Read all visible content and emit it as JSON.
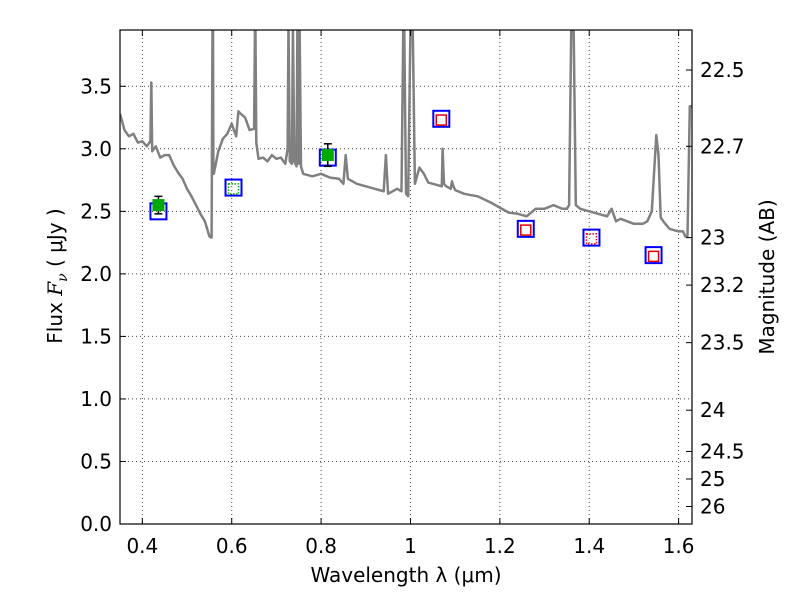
{
  "chart_data": {
    "type": "line",
    "xlabel": "Wavelength  λ (μm)",
    "ylabel_left": "Flux  F_ν  ( μJy )",
    "ylabel_left_parts": {
      "prefix": "Flux  ",
      "symbol": "F",
      "subscript": "ν",
      "suffix": "  ( μJy )"
    },
    "ylabel_right": "Magnitude (AB)",
    "xlim": [
      0.35,
      1.63
    ],
    "ylim": [
      0.0,
      3.95
    ],
    "grid": true,
    "x_ticks": [
      0.4,
      0.6,
      0.8,
      1.0,
      1.2,
      1.4,
      1.6
    ],
    "x_tick_labels": [
      "0.4",
      "0.6",
      "0.8",
      "1",
      "1.2",
      "1.4",
      "1.6"
    ],
    "y_ticks": [
      0.0,
      0.5,
      1.0,
      1.5,
      2.0,
      2.5,
      3.0,
      3.5
    ],
    "y_tick_labels": [
      "0.0",
      "0.5",
      "1.0",
      "1.5",
      "2.0",
      "2.5",
      "3.0",
      "3.5"
    ],
    "mag_ticks": [
      {
        "label": "22.5",
        "flux": 3.63
      },
      {
        "label": "22.7",
        "flux": 3.02
      },
      {
        "label": "23",
        "flux": 2.29
      },
      {
        "label": "23.2",
        "flux": 1.91
      },
      {
        "label": "23.5",
        "flux": 1.45
      },
      {
        "label": "24",
        "flux": 0.91
      },
      {
        "label": "24.5",
        "flux": 0.58
      },
      {
        "label": "25",
        "flux": 0.36
      },
      {
        "label": "26",
        "flux": 0.14
      }
    ],
    "series": [
      {
        "kind": "model_spectrum",
        "color": "#808080",
        "x": [
          0.35,
          0.36,
          0.37,
          0.38,
          0.39,
          0.4,
          0.41,
          0.418,
          0.42,
          0.422,
          0.43,
          0.44,
          0.45,
          0.46,
          0.47,
          0.48,
          0.49,
          0.5,
          0.51,
          0.52,
          0.53,
          0.54,
          0.55,
          0.555,
          0.557,
          0.558,
          0.559,
          0.56,
          0.57,
          0.58,
          0.59,
          0.6,
          0.61,
          0.615,
          0.62,
          0.63,
          0.64,
          0.65,
          0.652,
          0.653,
          0.655,
          0.66,
          0.67,
          0.68,
          0.69,
          0.7,
          0.71,
          0.72,
          0.725,
          0.727,
          0.73,
          0.735,
          0.737,
          0.74,
          0.745,
          0.747,
          0.75,
          0.752,
          0.755,
          0.76,
          0.78,
          0.8,
          0.82,
          0.84,
          0.85,
          0.855,
          0.86,
          0.87,
          0.88,
          0.9,
          0.92,
          0.94,
          0.945,
          0.95,
          0.97,
          0.98,
          0.984,
          0.986,
          0.99,
          0.995,
          1.0,
          1.005,
          1.01,
          1.02,
          1.03,
          1.04,
          1.05,
          1.07,
          1.072,
          1.075,
          1.08,
          1.09,
          1.093,
          1.096,
          1.1,
          1.12,
          1.15,
          1.18,
          1.2,
          1.22,
          1.24,
          1.26,
          1.28,
          1.3,
          1.32,
          1.34,
          1.35,
          1.355,
          1.36,
          1.365,
          1.37,
          1.38,
          1.4,
          1.42,
          1.44,
          1.45,
          1.46,
          1.47,
          1.5,
          1.52,
          1.53,
          1.54,
          1.55,
          1.555,
          1.56,
          1.57,
          1.58,
          1.6,
          1.61,
          1.615,
          1.62,
          1.625,
          1.63
        ],
        "y": [
          3.28,
          3.15,
          3.1,
          3.12,
          3.05,
          3.06,
          3.02,
          3.06,
          3.53,
          2.98,
          3.02,
          2.93,
          2.95,
          2.95,
          2.87,
          2.81,
          2.76,
          2.68,
          2.62,
          2.55,
          2.48,
          2.42,
          2.3,
          2.29,
          4.0,
          4.0,
          2.8,
          2.8,
          2.98,
          3.08,
          3.12,
          3.2,
          3.1,
          3.3,
          3.28,
          3.25,
          3.15,
          3.16,
          4.0,
          4.0,
          3.05,
          2.92,
          2.93,
          2.9,
          2.95,
          2.92,
          2.93,
          2.88,
          3.0,
          4.0,
          2.9,
          2.88,
          4.0,
          2.9,
          2.86,
          4.0,
          2.88,
          4.0,
          2.86,
          2.8,
          2.78,
          2.8,
          2.77,
          2.76,
          2.72,
          2.95,
          2.76,
          2.74,
          2.72,
          2.7,
          2.68,
          2.66,
          2.95,
          2.64,
          2.68,
          2.66,
          4.0,
          4.0,
          2.64,
          2.62,
          4.0,
          4.0,
          2.72,
          2.85,
          2.8,
          2.73,
          2.72,
          2.7,
          3.0,
          2.72,
          2.7,
          2.68,
          2.74,
          2.7,
          2.67,
          2.64,
          2.62,
          2.57,
          2.53,
          2.49,
          2.48,
          2.46,
          2.52,
          2.52,
          2.55,
          2.52,
          2.52,
          2.55,
          4.0,
          4.0,
          2.55,
          2.52,
          2.5,
          2.48,
          2.46,
          2.52,
          2.42,
          2.44,
          2.4,
          2.4,
          2.42,
          2.5,
          3.11,
          2.95,
          2.45,
          2.4,
          2.36,
          2.34,
          2.34,
          2.3,
          2.3,
          3.34,
          3.34
        ]
      },
      {
        "kind": "model_photometry",
        "marker": "square",
        "edgecolor": "#0000ff",
        "x": [
          0.436,
          0.604,
          0.815,
          1.069,
          1.258,
          1.405,
          1.544
        ],
        "y": [
          2.5,
          2.69,
          2.93,
          3.24,
          2.36,
          2.29,
          2.15
        ]
      },
      {
        "kind": "observed_photometry",
        "x": [
          0.436,
          0.604,
          0.815,
          1.069,
          1.258,
          1.405,
          1.544
        ],
        "y": [
          2.55,
          2.68,
          2.95,
          3.23,
          2.35,
          2.28,
          2.14
        ],
        "err": [
          0.07,
          0.0,
          0.09,
          0.0,
          0.0,
          0.0,
          0.0
        ],
        "style": [
          "filled",
          "dotted-open",
          "filled",
          "open",
          "open",
          "dotted-open",
          "open"
        ],
        "colors": [
          "#00aa00",
          "#00aa00",
          "#00aa00",
          "#dd0000",
          "#dd0000",
          "#dd0000",
          "#dd0000"
        ]
      }
    ]
  }
}
